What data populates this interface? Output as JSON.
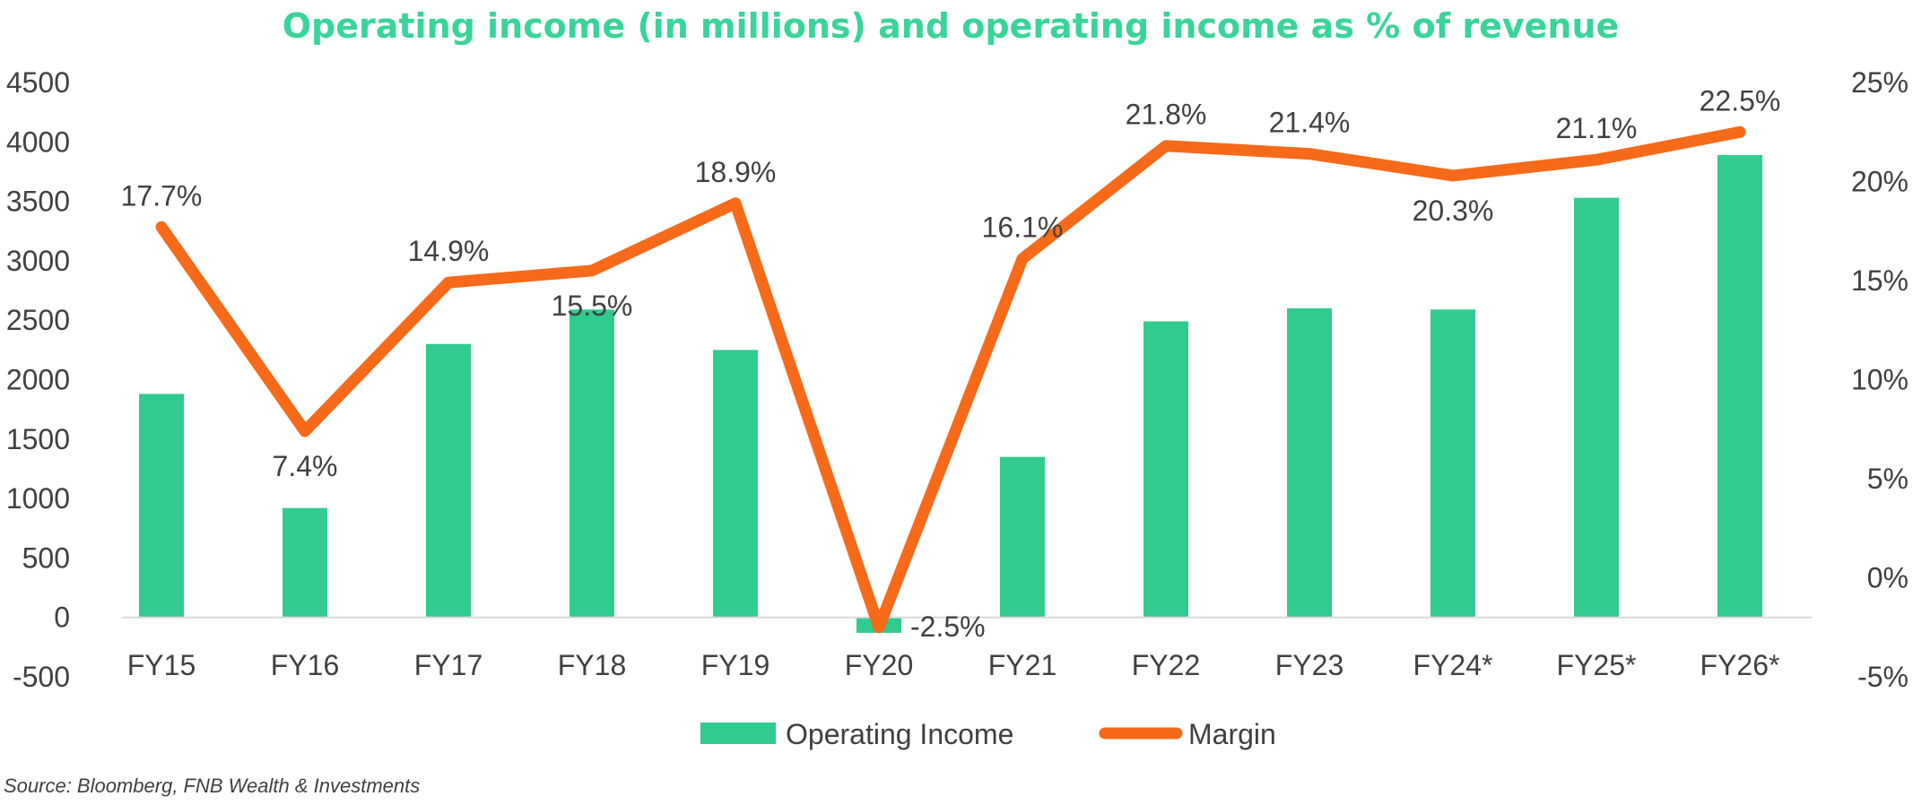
{
  "colors": {
    "bar": "#31CB90",
    "line": "#F66A1A",
    "title": "#39D49A",
    "text": "#404040",
    "axis": "#D9D9D9"
  },
  "chart_data": {
    "type": "bar",
    "title": "Operating income (in millions) and operating income as % of revenue",
    "categories": [
      "FY15",
      "FY16",
      "FY17",
      "FY18",
      "FY19",
      "FY20",
      "FY21",
      "FY22",
      "FY23",
      "FY24*",
      "FY25*",
      "FY26*"
    ],
    "series": [
      {
        "name": "Operating Income",
        "type": "bar",
        "axis": "left",
        "values": [
          1880,
          920,
          2300,
          2590,
          2250,
          -130,
          1350,
          2490,
          2600,
          2590,
          3530,
          3890
        ]
      },
      {
        "name": "Margin",
        "type": "line",
        "axis": "right",
        "values": [
          17.7,
          7.4,
          14.9,
          15.5,
          18.9,
          -2.5,
          16.1,
          21.8,
          21.4,
          20.3,
          21.1,
          22.5
        ],
        "labels": [
          "17.7%",
          "7.4%",
          "14.9%",
          "15.5%",
          "18.9%",
          "-2.5%",
          "16.1%",
          "21.8%",
          "21.4%",
          "20.3%",
          "21.1%",
          "22.5%"
        ]
      }
    ],
    "y_left": {
      "min": -500,
      "max": 4500,
      "ticks": [
        "-500",
        "0",
        "500",
        "1000",
        "1500",
        "2000",
        "2500",
        "3000",
        "3500",
        "4000",
        "4500"
      ]
    },
    "y_right": {
      "min": -5,
      "max": 25,
      "ticks": [
        "-5%",
        "0%",
        "5%",
        "10%",
        "15%",
        "20%",
        "25%"
      ]
    },
    "grid": false,
    "legend": {
      "position": "bottom",
      "entries": [
        "Operating Income",
        "Margin"
      ]
    }
  },
  "source": "Source: Bloomberg, FNB Wealth & Investments"
}
